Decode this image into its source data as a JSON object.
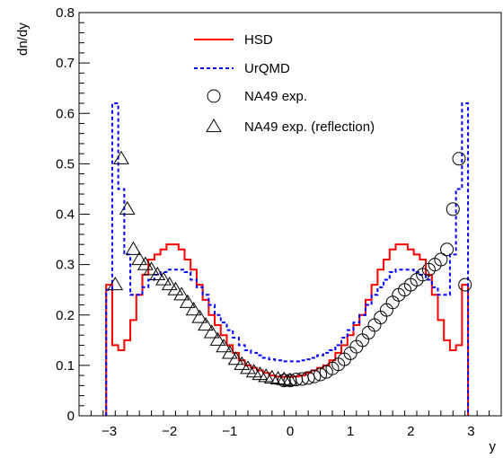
{
  "chart_data": {
    "type": "line",
    "xlabel": "y",
    "ylabel": "dn/dy",
    "xlim": [
      -3.5,
      3.5
    ],
    "ylim": [
      0,
      0.8
    ],
    "x_ticks": [
      -3,
      -2,
      -1,
      0,
      1,
      2,
      3
    ],
    "x_tick_labels": [
      "−3",
      "−2",
      "−1",
      "0",
      "1",
      "2",
      "3"
    ],
    "y_ticks": [
      0,
      0.1,
      0.2,
      0.3,
      0.4,
      0.5,
      0.6,
      0.7,
      0.8
    ],
    "y_tick_labels": [
      "0",
      "0.1",
      "0.2",
      "0.3",
      "0.4",
      "0.5",
      "0.6",
      "0.7",
      "0.8"
    ],
    "legend_position": "top-center",
    "series": [
      {
        "name": "HSD",
        "style": "step-line-solid",
        "color": "#ff0000",
        "bin_width": 0.1,
        "x": [
          -3.0,
          -2.9,
          -2.8,
          -2.7,
          -2.6,
          -2.5,
          -2.4,
          -2.3,
          -2.2,
          -2.1,
          -2.0,
          -1.9,
          -1.8,
          -1.7,
          -1.6,
          -1.5,
          -1.4,
          -1.3,
          -1.2,
          -1.1,
          -1.0,
          -0.9,
          -0.8,
          -0.7,
          -0.6,
          -0.5,
          -0.4,
          -0.3,
          -0.2,
          -0.1,
          0.0,
          0.1,
          0.2,
          0.3,
          0.4,
          0.5,
          0.6,
          0.7,
          0.8,
          0.9,
          1.0,
          1.1,
          1.2,
          1.3,
          1.4,
          1.5,
          1.6,
          1.7,
          1.8,
          1.9,
          2.0,
          2.1,
          2.2,
          2.3,
          2.4,
          2.5,
          2.6,
          2.7,
          2.8,
          2.9
        ],
        "y": [
          0.26,
          0.14,
          0.13,
          0.15,
          0.19,
          0.24,
          0.28,
          0.31,
          0.32,
          0.33,
          0.34,
          0.34,
          0.33,
          0.31,
          0.29,
          0.26,
          0.23,
          0.2,
          0.18,
          0.16,
          0.14,
          0.125,
          0.11,
          0.1,
          0.095,
          0.09,
          0.085,
          0.08,
          0.078,
          0.077,
          0.077,
          0.078,
          0.08,
          0.085,
          0.09,
          0.095,
          0.1,
          0.11,
          0.125,
          0.14,
          0.16,
          0.18,
          0.2,
          0.23,
          0.26,
          0.29,
          0.31,
          0.33,
          0.34,
          0.34,
          0.33,
          0.32,
          0.31,
          0.28,
          0.24,
          0.19,
          0.15,
          0.13,
          0.14,
          0.26
        ]
      },
      {
        "name": "UrQMD",
        "style": "step-line-dashed",
        "color": "#0000ff",
        "bin_width": 0.1,
        "x": [
          -3.0,
          -2.9,
          -2.8,
          -2.7,
          -2.6,
          -2.5,
          -2.4,
          -2.3,
          -2.2,
          -2.1,
          -2.0,
          -1.9,
          -1.8,
          -1.7,
          -1.6,
          -1.5,
          -1.4,
          -1.3,
          -1.2,
          -1.1,
          -1.0,
          -0.9,
          -0.8,
          -0.7,
          -0.6,
          -0.5,
          -0.4,
          -0.3,
          -0.2,
          -0.1,
          0.0,
          0.1,
          0.2,
          0.3,
          0.4,
          0.5,
          0.6,
          0.7,
          0.8,
          0.9,
          1.0,
          1.1,
          1.2,
          1.3,
          1.4,
          1.5,
          1.6,
          1.7,
          1.8,
          1.9,
          2.0,
          2.1,
          2.2,
          2.3,
          2.4,
          2.5,
          2.6,
          2.7,
          2.8,
          2.9
        ],
        "y": [
          0.25,
          0.62,
          0.45,
          0.32,
          0.24,
          0.24,
          0.255,
          0.27,
          0.28,
          0.285,
          0.29,
          0.29,
          0.29,
          0.285,
          0.27,
          0.255,
          0.24,
          0.22,
          0.2,
          0.185,
          0.17,
          0.155,
          0.14,
          0.13,
          0.125,
          0.12,
          0.115,
          0.112,
          0.11,
          0.108,
          0.108,
          0.108,
          0.11,
          0.112,
          0.115,
          0.12,
          0.125,
          0.13,
          0.14,
          0.155,
          0.17,
          0.185,
          0.2,
          0.22,
          0.24,
          0.255,
          0.27,
          0.285,
          0.29,
          0.29,
          0.29,
          0.285,
          0.28,
          0.27,
          0.255,
          0.24,
          0.24,
          0.32,
          0.45,
          0.62
        ]
      },
      {
        "name": "NA49 exp.",
        "style": "markers-circle",
        "color": "#000000",
        "x": [
          -0.1,
          0.0,
          0.1,
          0.2,
          0.3,
          0.4,
          0.5,
          0.6,
          0.7,
          0.8,
          0.9,
          1.0,
          1.1,
          1.2,
          1.3,
          1.4,
          1.5,
          1.6,
          1.7,
          1.8,
          1.9,
          2.0,
          2.1,
          2.2,
          2.3,
          2.4,
          2.5,
          2.6,
          2.7,
          2.8,
          2.9
        ],
        "y": [
          0.07,
          0.07,
          0.072,
          0.073,
          0.075,
          0.078,
          0.082,
          0.087,
          0.094,
          0.102,
          0.112,
          0.124,
          0.137,
          0.15,
          0.165,
          0.18,
          0.195,
          0.21,
          0.225,
          0.24,
          0.25,
          0.26,
          0.27,
          0.28,
          0.29,
          0.3,
          0.31,
          0.33,
          0.41,
          0.51,
          0.26
        ]
      },
      {
        "name": "NA49 exp. (reflection)",
        "style": "markers-triangle",
        "color": "#000000",
        "x": [
          -2.9,
          -2.8,
          -2.7,
          -2.6,
          -2.5,
          -2.4,
          -2.3,
          -2.2,
          -2.1,
          -2.0,
          -1.9,
          -1.8,
          -1.7,
          -1.6,
          -1.5,
          -1.4,
          -1.3,
          -1.2,
          -1.1,
          -1.0,
          -0.9,
          -0.8,
          -0.7,
          -0.6,
          -0.5,
          -0.4,
          -0.3,
          -0.2,
          -0.1,
          0.0
        ],
        "y": [
          0.26,
          0.51,
          0.41,
          0.33,
          0.31,
          0.3,
          0.29,
          0.28,
          0.27,
          0.26,
          0.25,
          0.24,
          0.225,
          0.21,
          0.195,
          0.18,
          0.165,
          0.15,
          0.137,
          0.124,
          0.112,
          0.102,
          0.094,
          0.087,
          0.082,
          0.078,
          0.075,
          0.073,
          0.072,
          0.07
        ]
      }
    ]
  }
}
